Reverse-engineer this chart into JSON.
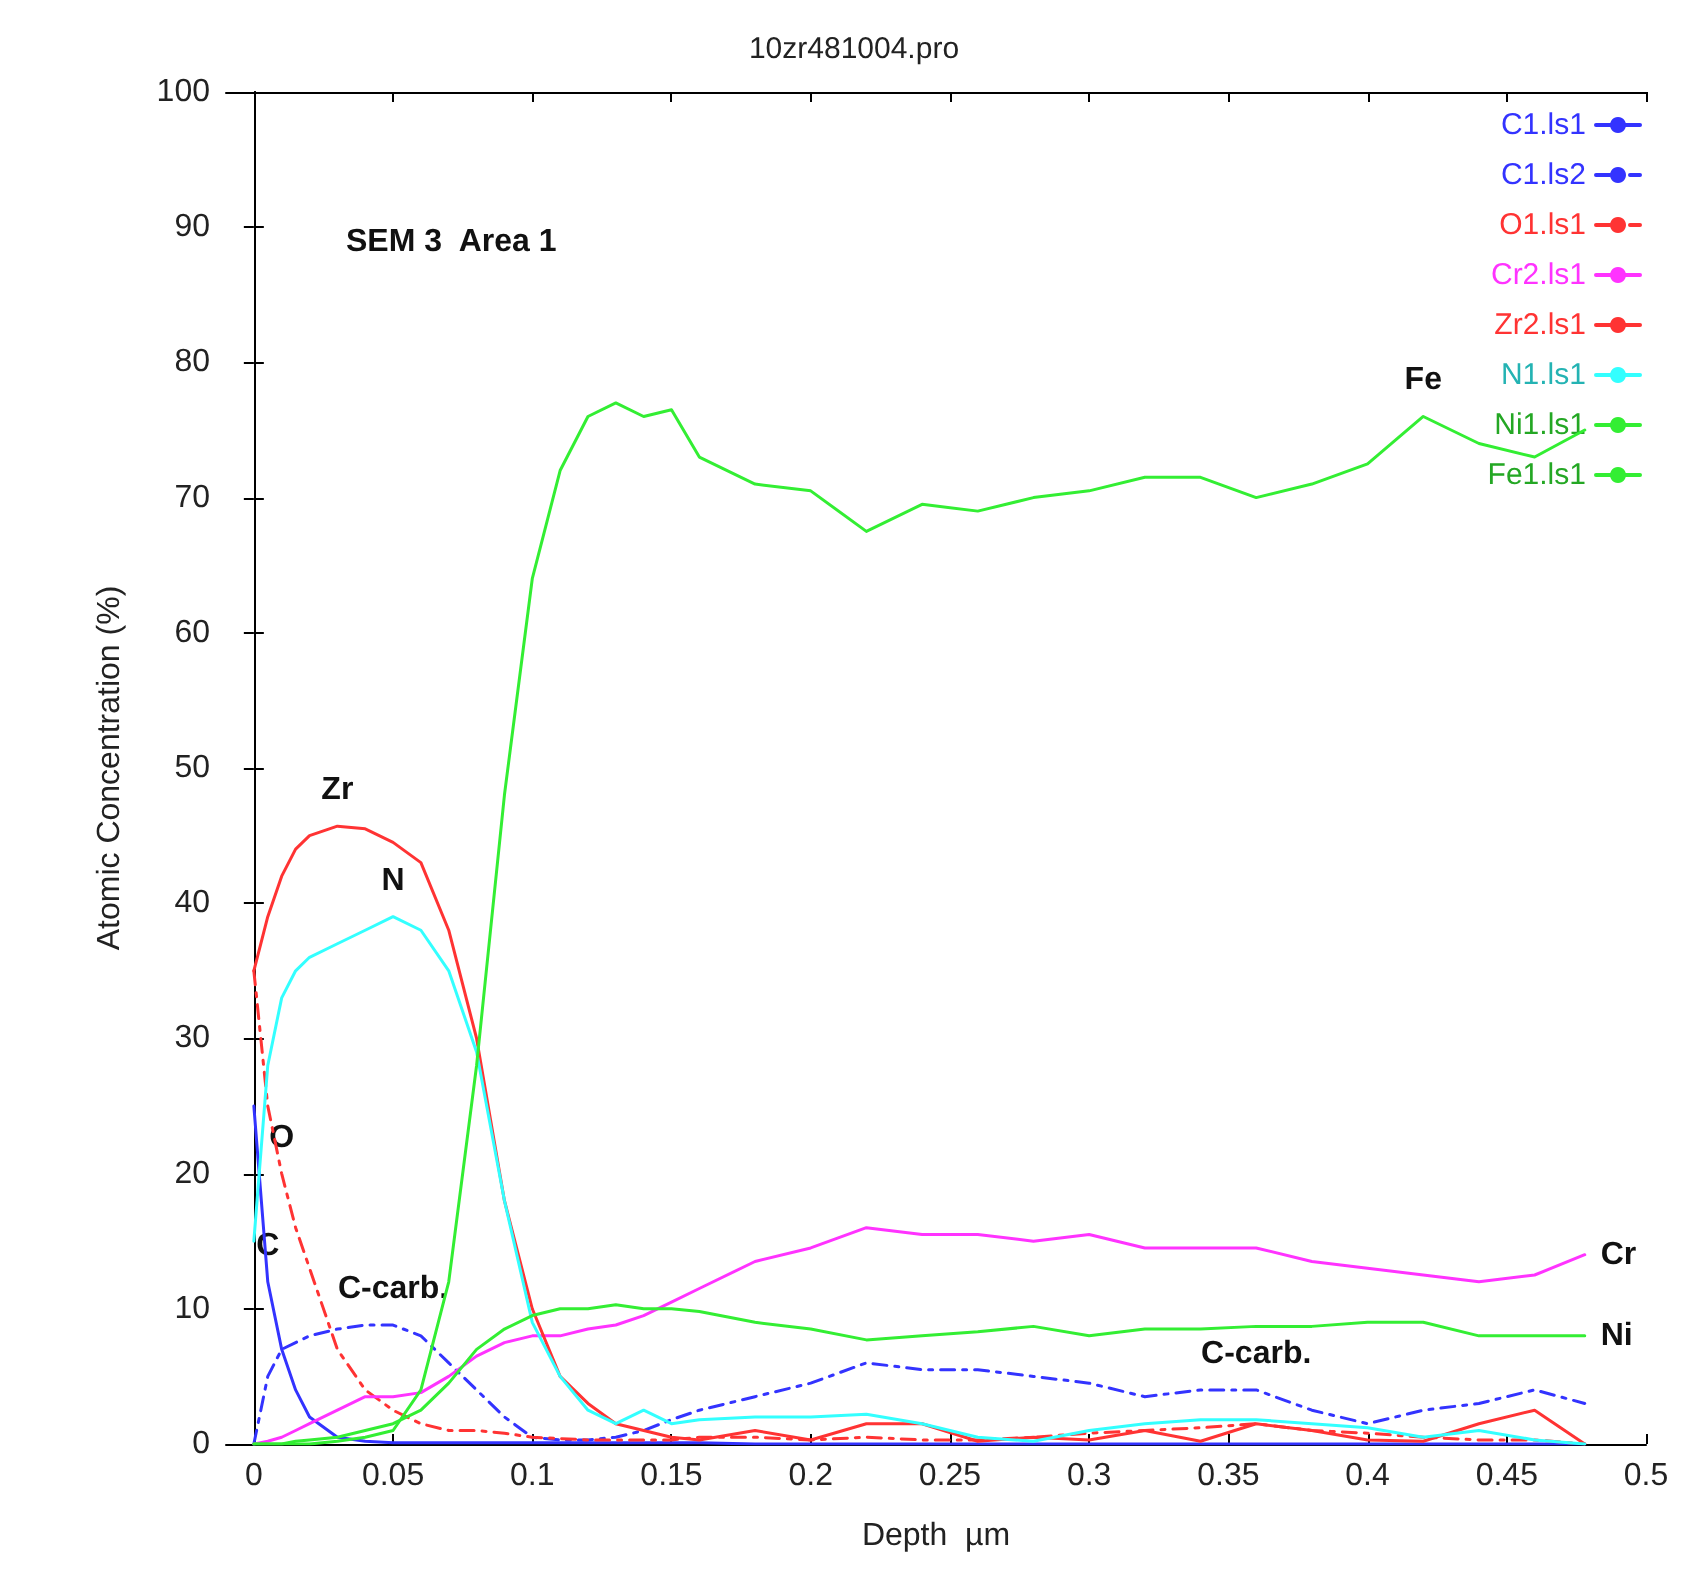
{
  "chart_data": {
    "type": "line",
    "title": "10zr481004.pro",
    "xlabel": "Depth  µm",
    "ylabel": "Atomic Concentration (%)",
    "x": [
      0,
      0.005,
      0.01,
      0.015,
      0.02,
      0.03,
      0.04,
      0.05,
      0.06,
      0.07,
      0.08,
      0.09,
      0.1,
      0.11,
      0.12,
      0.13,
      0.14,
      0.15,
      0.16,
      0.18,
      0.2,
      0.22,
      0.24,
      0.26,
      0.28,
      0.3,
      0.32,
      0.34,
      0.36,
      0.38,
      0.4,
      0.42,
      0.44,
      0.46,
      0.478
    ],
    "series": [
      {
        "name": "C1.ls1",
        "color": "#3333ff",
        "line_style": "solid",
        "values": [
          25,
          12,
          7,
          4,
          2,
          0.5,
          0.2,
          0.1,
          0.1,
          0.1,
          0.1,
          0.1,
          0.1,
          0.1,
          0.1,
          0.1,
          0.1,
          0.1,
          0.1,
          0,
          0,
          0,
          0,
          0,
          0,
          0,
          0,
          0,
          0,
          0,
          0,
          0,
          0,
          0,
          0
        ]
      },
      {
        "name": "C1.ls2",
        "color": "#3333ff",
        "line_style": "dashed",
        "values": [
          0,
          5,
          7,
          7.5,
          8,
          8.5,
          8.8,
          8.8,
          8,
          6,
          4,
          2,
          0.5,
          0.3,
          0.3,
          0.5,
          1,
          1.8,
          2.5,
          3.5,
          4.5,
          6,
          5.5,
          5.5,
          5,
          4.5,
          3.5,
          4,
          4,
          2.5,
          1.5,
          2.5,
          3,
          4,
          3
        ]
      },
      {
        "name": "O1.ls1",
        "color": "#ff3333",
        "line_style": "dashed",
        "values": [
          35,
          25,
          20,
          16,
          13,
          7,
          4,
          2.5,
          1.5,
          1,
          1,
          0.8,
          0.5,
          0.4,
          0.3,
          0.3,
          0.3,
          0.3,
          0.5,
          0.5,
          0.3,
          0.5,
          0.3,
          0.3,
          0.5,
          0.8,
          1,
          1.2,
          1.5,
          1,
          0.8,
          0.5,
          0.3,
          0.3,
          0
        ]
      },
      {
        "name": "Cr2.ls1",
        "color": "#ff33ff",
        "line_style": "solid",
        "values": [
          0,
          0.2,
          0.5,
          1,
          1.5,
          2.5,
          3.5,
          3.5,
          3.8,
          5,
          6.5,
          7.5,
          8,
          8,
          8.5,
          8.8,
          9.5,
          10.5,
          11.5,
          13.5,
          14.5,
          16,
          15.5,
          15.5,
          15,
          15.5,
          14.5,
          14.5,
          14.5,
          13.5,
          13,
          12.5,
          12,
          12.5,
          14
        ]
      },
      {
        "name": "Zr2.ls1",
        "color": "#ff3333",
        "line_style": "solid",
        "values": [
          35,
          39,
          42,
          44,
          45,
          45.7,
          45.5,
          44.5,
          43,
          38,
          30,
          18,
          10,
          5,
          3,
          1.5,
          1,
          0.5,
          0.3,
          1,
          0.3,
          1.5,
          1.5,
          0.2,
          0.5,
          0.3,
          1,
          0.2,
          1.5,
          1,
          0.3,
          0.2,
          1.5,
          2.5,
          0
        ]
      },
      {
        "name": "N1.ls1",
        "color": "#33ffff",
        "line_style": "solid",
        "values": [
          15,
          28,
          33,
          35,
          36,
          37,
          38,
          39,
          38,
          35,
          29,
          18,
          9,
          5,
          2.5,
          1.5,
          2.5,
          1.5,
          1.8,
          2,
          2,
          2.2,
          1.5,
          0.5,
          0.2,
          1,
          1.5,
          1.8,
          1.8,
          1.5,
          1.2,
          0.5,
          1,
          0.3,
          0
        ]
      },
      {
        "name": "Ni1.ls1",
        "color": "#33ee33",
        "line_style": "solid",
        "values": [
          0,
          0,
          0,
          0.2,
          0.3,
          0.5,
          1,
          1.5,
          2.5,
          4.5,
          7,
          8.5,
          9.5,
          10,
          10,
          10.3,
          10,
          10,
          9.8,
          9,
          8.5,
          7.7,
          8,
          8.3,
          8.7,
          8,
          8.5,
          8.5,
          8.7,
          8.7,
          9,
          9,
          8,
          8,
          8
        ]
      },
      {
        "name": "Fe1.ls1",
        "color": "#33ee33",
        "line_style": "solid",
        "values": [
          0,
          0,
          0,
          0,
          0,
          0.2,
          0.5,
          1,
          4,
          12,
          28,
          48,
          64,
          72,
          76,
          77,
          76,
          76.5,
          73,
          71,
          70.5,
          67.5,
          69.5,
          69,
          70,
          70.5,
          71.5,
          71.5,
          70,
          71,
          72.5,
          76,
          74,
          73,
          75
        ]
      }
    ],
    "xlim": [
      -0.01,
      0.5
    ],
    "xticks": [
      0,
      0.05,
      0.1,
      0.15,
      0.2,
      0.25,
      0.3,
      0.35,
      0.4,
      0.45,
      0.5
    ],
    "ylim": [
      0,
      100
    ],
    "yticks": [
      0,
      10,
      20,
      30,
      40,
      50,
      60,
      70,
      80,
      90,
      100
    ],
    "grid": false,
    "legend": "top right",
    "marker": "none",
    "annotations": [
      "SEM 3  Area 1",
      {
        "text": "Fe",
        "x": 0.42,
        "y": 76
      },
      {
        "text": "Zr",
        "x": 0.03,
        "y": 45.7
      },
      {
        "text": "N",
        "x": 0.05,
        "y": 39
      },
      {
        "text": "O",
        "x": 0.01,
        "y": 20
      },
      {
        "text": "C",
        "x": 0.005,
        "y": 12
      },
      {
        "text": "C-carb.",
        "x": 0.05,
        "y": 8.8
      },
      {
        "text": "C-carb.",
        "x": 0.36,
        "y": 4
      },
      {
        "text": "Cr",
        "x": 0.478,
        "y": 14
      },
      {
        "text": "Ni",
        "x": 0.478,
        "y": 8
      }
    ]
  }
}
